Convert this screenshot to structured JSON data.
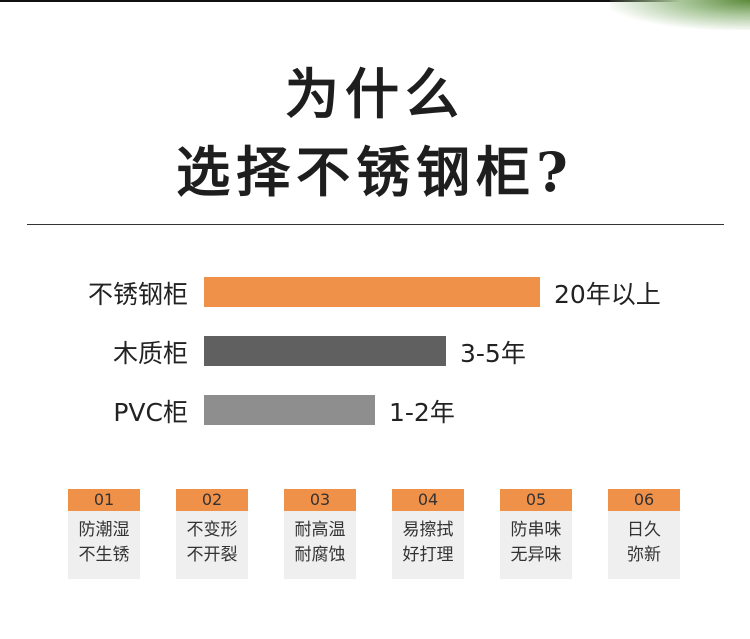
{
  "header": {
    "title_line1": "为什么",
    "title_line2": "选择不锈钢柜?"
  },
  "chart_data": {
    "type": "bar",
    "orientation": "horizontal",
    "categories": [
      "不锈钢柜",
      "木质柜",
      "PVC柜"
    ],
    "value_labels": [
      "20年以上",
      "3-5年",
      "1-2年"
    ],
    "relative_lengths": [
      1.0,
      0.72,
      0.51
    ],
    "colors": [
      "#f0914a",
      "#606060",
      "#8e8e8e"
    ]
  },
  "features": [
    {
      "num": "01",
      "line1": "防潮湿",
      "line2": "不生锈"
    },
    {
      "num": "02",
      "line1": "不变形",
      "line2": "不开裂"
    },
    {
      "num": "03",
      "line1": "耐高温",
      "line2": "耐腐蚀"
    },
    {
      "num": "04",
      "line1": "易擦拭",
      "line2": "好打理"
    },
    {
      "num": "05",
      "line1": "防串味",
      "line2": "无异味"
    },
    {
      "num": "06",
      "line1": "日久",
      "line2": "弥新"
    }
  ],
  "colors": {
    "accent": "#f0914a",
    "card_bg": "#efefef"
  }
}
